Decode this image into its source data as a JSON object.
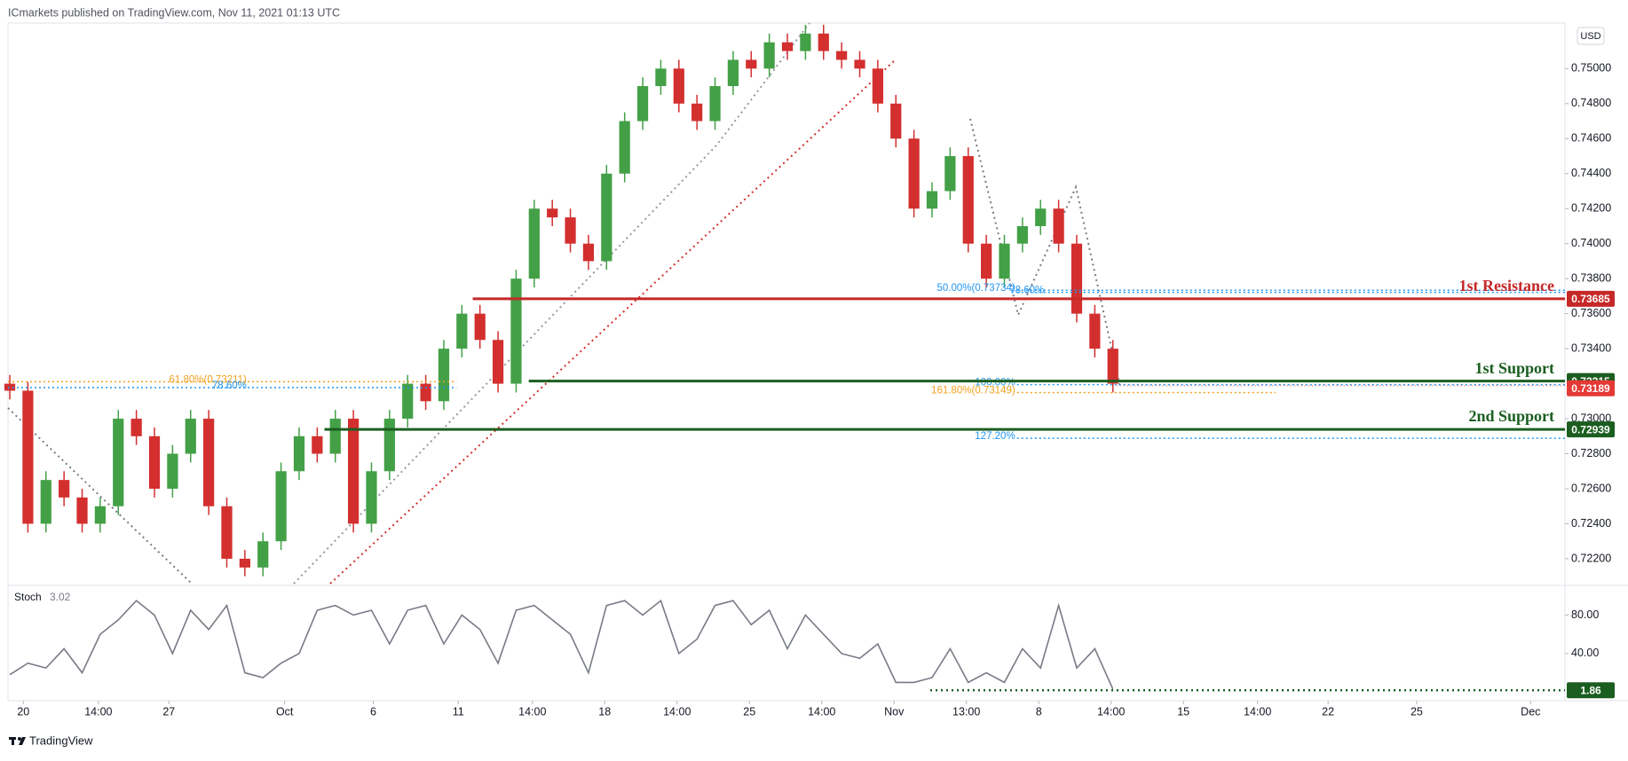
{
  "header": "ICmarkets published on TradingView.com, Nov 11, 2021 01:13 UTC",
  "footer": {
    "brand": "TradingView"
  },
  "chart_data": [
    {
      "type": "candlestick",
      "currency": "USD",
      "up_color": "#43a047",
      "down_color": "#d32f2f",
      "x": [
        0,
        1,
        2,
        3,
        4,
        5,
        6,
        7,
        8,
        9,
        10,
        11,
        12,
        13,
        14,
        15,
        16,
        17,
        18,
        19,
        20,
        21,
        22,
        23,
        24,
        25,
        26,
        27,
        28,
        29,
        30,
        31,
        32,
        33,
        34,
        35,
        36,
        37,
        38,
        39,
        40,
        41,
        42,
        43,
        44,
        45,
        46,
        47,
        48,
        49,
        50,
        51,
        52,
        53,
        54,
        55,
        56,
        57,
        58,
        59,
        60,
        61
      ],
      "open": [
        0.732,
        0.7316,
        0.724,
        0.7265,
        0.7255,
        0.724,
        0.725,
        0.73,
        0.729,
        0.726,
        0.728,
        0.73,
        0.725,
        0.722,
        0.7215,
        0.723,
        0.727,
        0.729,
        0.728,
        0.73,
        0.724,
        0.727,
        0.73,
        0.732,
        0.731,
        0.734,
        0.736,
        0.7345,
        0.732,
        0.738,
        0.742,
        0.7415,
        0.74,
        0.739,
        0.744,
        0.747,
        0.749,
        0.75,
        0.748,
        0.747,
        0.749,
        0.7505,
        0.75,
        0.7515,
        0.751,
        0.752,
        0.751,
        0.7505,
        0.75,
        0.748,
        0.746,
        0.742,
        0.743,
        0.745,
        0.74,
        0.738,
        0.74,
        0.741,
        0.742,
        0.74,
        0.736,
        0.734
      ],
      "high": [
        0.7325,
        0.7321,
        0.727,
        0.727,
        0.726,
        0.7255,
        0.7305,
        0.7305,
        0.7295,
        0.7285,
        0.7305,
        0.7305,
        0.7255,
        0.7225,
        0.7235,
        0.7275,
        0.7295,
        0.7295,
        0.7305,
        0.7305,
        0.7275,
        0.7305,
        0.7325,
        0.7325,
        0.7345,
        0.7365,
        0.7365,
        0.735,
        0.7385,
        0.7425,
        0.7425,
        0.742,
        0.7405,
        0.7445,
        0.7475,
        0.7495,
        0.7505,
        0.7505,
        0.7485,
        0.7495,
        0.751,
        0.751,
        0.752,
        0.752,
        0.7525,
        0.7525,
        0.7515,
        0.751,
        0.7505,
        0.7485,
        0.7465,
        0.7435,
        0.7455,
        0.7455,
        0.7405,
        0.7405,
        0.7415,
        0.7425,
        0.7425,
        0.7405,
        0.7365,
        0.7345
      ],
      "low": [
        0.7311,
        0.7235,
        0.7235,
        0.725,
        0.7235,
        0.7235,
        0.7245,
        0.7285,
        0.7255,
        0.7255,
        0.7275,
        0.7245,
        0.7215,
        0.721,
        0.721,
        0.7225,
        0.7265,
        0.7275,
        0.7275,
        0.7235,
        0.7235,
        0.7265,
        0.7295,
        0.7305,
        0.7305,
        0.7335,
        0.734,
        0.7315,
        0.7315,
        0.7375,
        0.741,
        0.7395,
        0.7385,
        0.7385,
        0.7435,
        0.7465,
        0.7485,
        0.7475,
        0.7465,
        0.7465,
        0.7485,
        0.7495,
        0.7495,
        0.7505,
        0.7505,
        0.7505,
        0.75,
        0.7495,
        0.7475,
        0.7455,
        0.7415,
        0.7415,
        0.7425,
        0.7395,
        0.7375,
        0.7375,
        0.7395,
        0.7405,
        0.7395,
        0.7355,
        0.7335,
        0.7315
      ],
      "close": [
        0.7316,
        0.724,
        0.7265,
        0.7255,
        0.724,
        0.725,
        0.73,
        0.729,
        0.726,
        0.728,
        0.73,
        0.725,
        0.722,
        0.7215,
        0.723,
        0.727,
        0.729,
        0.728,
        0.73,
        0.724,
        0.727,
        0.73,
        0.732,
        0.731,
        0.734,
        0.736,
        0.7345,
        0.732,
        0.738,
        0.742,
        0.7415,
        0.74,
        0.739,
        0.744,
        0.747,
        0.749,
        0.75,
        0.748,
        0.747,
        0.749,
        0.7505,
        0.75,
        0.7515,
        0.751,
        0.752,
        0.751,
        0.7505,
        0.75,
        0.748,
        0.746,
        0.742,
        0.743,
        0.745,
        0.74,
        0.738,
        0.74,
        0.741,
        0.742,
        0.74,
        0.736,
        0.734,
        0.732
      ],
      "xlim": [
        -0.1,
        86
      ],
      "ylim": [
        0.72058,
        0.7526
      ],
      "yticks": [
        {
          "value": 0.75,
          "label": "0.75000"
        },
        {
          "value": 0.748,
          "label": "0.74800"
        },
        {
          "value": 0.746,
          "label": "0.74600"
        },
        {
          "value": 0.744,
          "label": "0.74400"
        },
        {
          "value": 0.742,
          "label": "0.74200"
        },
        {
          "value": 0.74,
          "label": "0.74000"
        },
        {
          "value": 0.738,
          "label": "0.73800"
        },
        {
          "value": 0.736,
          "label": "0.73600"
        },
        {
          "value": 0.734,
          "label": "0.73400"
        },
        {
          "value": 0.73,
          "label": "0.73000"
        },
        {
          "value": 0.728,
          "label": "0.72800"
        },
        {
          "value": 0.726,
          "label": "0.72600"
        },
        {
          "value": 0.724,
          "label": "0.72400"
        },
        {
          "value": 0.722,
          "label": "0.72200"
        }
      ],
      "xticks": [
        {
          "value": 0.75,
          "label": "20"
        },
        {
          "value": 4.9,
          "label": "14:00"
        },
        {
          "value": 8.8,
          "label": "27"
        },
        {
          "value": 15.2,
          "label": "Oct"
        },
        {
          "value": 20.1,
          "label": "6"
        },
        {
          "value": 24.8,
          "label": "11"
        },
        {
          "value": 28.9,
          "label": "14:00"
        },
        {
          "value": 32.9,
          "label": "18"
        },
        {
          "value": 36.9,
          "label": "14:00"
        },
        {
          "value": 40.9,
          "label": "25"
        },
        {
          "value": 44.9,
          "label": "14:00"
        },
        {
          "value": 48.9,
          "label": "Nov"
        },
        {
          "value": 52.9,
          "label": "13:00"
        },
        {
          "value": 56.9,
          "label": "8"
        },
        {
          "value": 60.9,
          "label": "14:00"
        },
        {
          "value": 64.9,
          "label": "15"
        },
        {
          "value": 69.0,
          "label": "14:00"
        },
        {
          "value": 72.9,
          "label": "22"
        },
        {
          "value": 77.8,
          "label": "25"
        },
        {
          "value": 84.1,
          "label": "Dec"
        }
      ],
      "levels": [
        {
          "name": "1st Resistance",
          "value": 0.73685,
          "color": "#c62828",
          "from": 25.6
        },
        {
          "name": "1st Support",
          "value": 0.73215,
          "color": "#1b5e20",
          "from": 28.7
        },
        {
          "name": "2nd Support",
          "value": 0.72939,
          "color": "#1b5e20",
          "from": 17.4
        }
      ],
      "current_price": {
        "value": 0.73189,
        "color": "#e53935"
      },
      "fib": [
        {
          "label": "61.80%(0.73211)",
          "value": 0.73211,
          "color": "#f0a020",
          "from": -0.1,
          "to": 24.7,
          "label_x": 13.1
        },
        {
          "label": "78.60%",
          "value": 0.73178,
          "color": "#2196f3",
          "from": -0.1,
          "to": 24.7,
          "label_x": 13.1
        },
        {
          "label": "50.00%(0.73734)",
          "value": 0.73734,
          "color": "#2196f3",
          "from": 55.7,
          "to": 86,
          "label_x": 55.6
        },
        {
          "label": "78.60%",
          "value": 0.73722,
          "color": "#2196f3",
          "from": 55.7,
          "to": 86,
          "label_x": 57.2
        },
        {
          "label": "100.00%",
          "value": 0.73195,
          "color": "#2196f3",
          "from": 55.7,
          "to": 86,
          "label_x": 55.6
        },
        {
          "label": "161.80%(0.73149)",
          "value": 0.73149,
          "color": "#f0a020",
          "from": 55.7,
          "to": 70,
          "label_x": 55.6
        },
        {
          "label": "127.20%",
          "value": 0.72888,
          "color": "#2196f3",
          "from": 55.7,
          "to": 86,
          "label_x": 55.6
        }
      ]
    },
    {
      "type": "line",
      "series": [
        {
          "name": "Stoch",
          "color": "#787b86",
          "values": [
            18,
            30,
            25,
            45,
            20,
            60,
            75,
            95,
            80,
            40,
            85,
            65,
            90,
            20,
            15,
            30,
            40,
            85,
            90,
            80,
            85,
            50,
            85,
            90,
            50,
            80,
            65,
            30,
            85,
            90,
            75,
            60,
            20,
            90,
            95,
            80,
            95,
            40,
            55,
            90,
            95,
            70,
            85,
            45,
            80,
            60,
            40,
            35,
            50,
            10,
            10,
            15,
            45,
            10,
            20,
            10,
            45,
            25,
            90,
            25,
            45,
            3.02
          ]
        }
      ],
      "x": [
        0,
        1,
        2,
        3,
        4,
        5,
        6,
        7,
        8,
        9,
        10,
        11,
        12,
        13,
        14,
        15,
        16,
        17,
        18,
        19,
        20,
        21,
        22,
        23,
        24,
        25,
        26,
        27,
        28,
        29,
        30,
        31,
        32,
        33,
        34,
        35,
        36,
        37,
        38,
        39,
        40,
        41,
        42,
        43,
        44,
        45,
        46,
        47,
        48,
        49,
        50,
        51,
        52,
        53,
        54,
        55,
        56,
        57,
        58,
        59,
        60,
        61
      ],
      "xlim": [
        -0.1,
        86
      ],
      "ylim": [
        -9,
        109
      ],
      "yticks": [
        {
          "value": 80,
          "label": "80.00"
        },
        {
          "value": 40,
          "label": "40.00"
        }
      ],
      "level": {
        "value": 1.86,
        "color": "#1b5e20",
        "from": 50.9
      }
    }
  ]
}
